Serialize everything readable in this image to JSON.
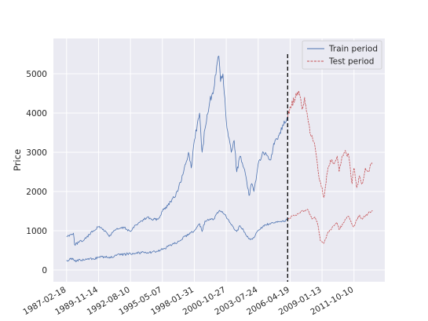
{
  "chart_data": {
    "type": "line",
    "title": "",
    "xlabel": "",
    "ylabel": "Price",
    "x_axis_type": "date",
    "xlim": [
      "1986-01-01",
      "2014-06-01"
    ],
    "ylim": [
      -300,
      5900
    ],
    "grid": true,
    "style": "seaborn-darkgrid",
    "legend_position": "top-right",
    "x_tick_labels": [
      "1987-02-18",
      "1989-11-14",
      "1992-08-10",
      "1995-05-07",
      "1998-01-31",
      "2000-10-27",
      "2003-07-24",
      "2006-04-19",
      "2009-01-13",
      "2011-10-10"
    ],
    "y_ticks": [
      0,
      1000,
      2000,
      3000,
      4000,
      5000
    ],
    "split_date": "2006-02-01",
    "split_line_top": 5500,
    "series": [
      {
        "name": "Train period",
        "color": "#4c72b0",
        "style": "solid",
        "points": [
          [
            "1987-02-18",
            850
          ],
          [
            "1987-06-01",
            900
          ],
          [
            "1987-09-20",
            940
          ],
          [
            "1987-10-25",
            650
          ],
          [
            "1988-03-01",
            700
          ],
          [
            "1988-09-01",
            780
          ],
          [
            "1989-02-01",
            900
          ],
          [
            "1989-06-01",
            1000
          ],
          [
            "1989-11-14",
            1100
          ],
          [
            "1990-03-01",
            1060
          ],
          [
            "1990-08-01",
            950
          ],
          [
            "1990-10-15",
            850
          ],
          [
            "1991-03-01",
            1000
          ],
          [
            "1991-08-01",
            1050
          ],
          [
            "1992-02-01",
            1080
          ],
          [
            "1992-08-10",
            980
          ],
          [
            "1993-02-01",
            1150
          ],
          [
            "1993-08-01",
            1250
          ],
          [
            "1994-02-01",
            1350
          ],
          [
            "1994-06-01",
            1280
          ],
          [
            "1995-01-01",
            1300
          ],
          [
            "1995-05-07",
            1500
          ],
          [
            "1995-10-01",
            1650
          ],
          [
            "1996-03-01",
            1800
          ],
          [
            "1996-09-01",
            2000
          ],
          [
            "1997-03-01",
            2500
          ],
          [
            "1997-08-01",
            3000
          ],
          [
            "1997-10-27",
            2600
          ],
          [
            "1998-01-31",
            3300
          ],
          [
            "1998-07-15",
            4000
          ],
          [
            "1998-10-01",
            3000
          ],
          [
            "1999-01-01",
            3600
          ],
          [
            "1999-06-01",
            4300
          ],
          [
            "1999-10-01",
            4600
          ],
          [
            "2000-01-01",
            5200
          ],
          [
            "2000-03-10",
            5450
          ],
          [
            "2000-05-01",
            4800
          ],
          [
            "2000-07-15",
            5000
          ],
          [
            "2000-10-27",
            3800
          ],
          [
            "2001-01-01",
            3400
          ],
          [
            "2001-04-01",
            3000
          ],
          [
            "2001-07-01",
            3300
          ],
          [
            "2001-09-21",
            2500
          ],
          [
            "2002-01-01",
            2900
          ],
          [
            "2002-05-01",
            2600
          ],
          [
            "2002-10-09",
            1900
          ],
          [
            "2003-01-01",
            2200
          ],
          [
            "2003-03-11",
            2000
          ],
          [
            "2003-07-24",
            2700
          ],
          [
            "2004-01-01",
            3000
          ],
          [
            "2004-08-01",
            2800
          ],
          [
            "2005-01-01",
            3300
          ],
          [
            "2005-06-01",
            3500
          ],
          [
            "2005-10-15",
            3800
          ],
          [
            "2006-02-01",
            3900
          ]
        ]
      },
      {
        "name": "Test period",
        "color": "#c44e52",
        "style": "dashed",
        "points": [
          [
            "2006-02-01",
            3900
          ],
          [
            "2006-06-01",
            4200
          ],
          [
            "2006-10-01",
            4400
          ],
          [
            "2007-02-01",
            4500
          ],
          [
            "2007-05-01",
            4100
          ],
          [
            "2007-07-15",
            4400
          ],
          [
            "2007-10-01",
            4000
          ],
          [
            "2008-01-01",
            3500
          ],
          [
            "2008-04-01",
            3300
          ],
          [
            "2008-07-01",
            3000
          ],
          [
            "2008-10-01",
            2400
          ],
          [
            "2009-01-13",
            2100
          ],
          [
            "2009-03-09",
            1850
          ],
          [
            "2009-07-01",
            2500
          ],
          [
            "2009-10-01",
            2800
          ],
          [
            "2010-01-01",
            2700
          ],
          [
            "2010-05-01",
            2900
          ],
          [
            "2010-07-01",
            2500
          ],
          [
            "2010-10-01",
            2900
          ],
          [
            "2011-02-01",
            3000
          ],
          [
            "2011-05-01",
            2900
          ],
          [
            "2011-08-10",
            2200
          ],
          [
            "2011-10-10",
            2600
          ],
          [
            "2012-01-01",
            2100
          ],
          [
            "2012-04-01",
            2400
          ],
          [
            "2012-07-01",
            2200
          ],
          [
            "2012-10-01",
            2600
          ],
          [
            "2013-01-01",
            2500
          ],
          [
            "2013-04-01",
            2700
          ],
          [
            "2013-05-15",
            2700
          ]
        ]
      },
      {
        "color": "#4c72b0",
        "style": "solid",
        "points": [
          [
            "1987-02-18",
            250
          ],
          [
            "1987-09-01",
            300
          ],
          [
            "1987-10-25",
            230
          ],
          [
            "1988-06-01",
            250
          ],
          [
            "1989-06-01",
            290
          ],
          [
            "1989-11-14",
            320
          ],
          [
            "1990-06-01",
            340
          ],
          [
            "1990-10-15",
            300
          ],
          [
            "1991-06-01",
            370
          ],
          [
            "1992-08-10",
            420
          ],
          [
            "1993-08-01",
            450
          ],
          [
            "1994-06-01",
            450
          ],
          [
            "1995-05-07",
            520
          ],
          [
            "1996-03-01",
            640
          ],
          [
            "1997-01-01",
            780
          ],
          [
            "1997-08-01",
            920
          ],
          [
            "1998-01-31",
            1000
          ],
          [
            "1998-07-15",
            1180
          ],
          [
            "1998-10-01",
            980
          ],
          [
            "1999-01-01",
            1250
          ],
          [
            "1999-10-01",
            1300
          ],
          [
            "2000-03-24",
            1520
          ],
          [
            "2000-09-01",
            1420
          ],
          [
            "2000-10-27",
            1350
          ],
          [
            "2001-04-01",
            1150
          ],
          [
            "2001-09-21",
            980
          ],
          [
            "2002-01-01",
            1130
          ],
          [
            "2002-10-09",
            790
          ],
          [
            "2003-03-11",
            820
          ],
          [
            "2003-07-24",
            1000
          ],
          [
            "2004-01-01",
            1130
          ],
          [
            "2005-01-01",
            1200
          ],
          [
            "2005-10-15",
            1250
          ],
          [
            "2006-02-01",
            1300
          ]
        ]
      },
      {
        "color": "#c44e52",
        "style": "dashed",
        "points": [
          [
            "2006-02-01",
            1300
          ],
          [
            "2006-10-01",
            1400
          ],
          [
            "2007-02-01",
            1450
          ],
          [
            "2007-10-09",
            1550
          ],
          [
            "2008-03-01",
            1300
          ],
          [
            "2008-06-01",
            1350
          ],
          [
            "2008-09-01",
            1150
          ],
          [
            "2008-11-20",
            750
          ],
          [
            "2009-03-09",
            680
          ],
          [
            "2009-07-01",
            930
          ],
          [
            "2010-01-01",
            1120
          ],
          [
            "2010-04-23",
            1210
          ],
          [
            "2010-07-01",
            1030
          ],
          [
            "2011-01-01",
            1280
          ],
          [
            "2011-04-29",
            1360
          ],
          [
            "2011-10-03",
            1100
          ],
          [
            "2012-01-01",
            1280
          ],
          [
            "2012-04-01",
            1400
          ],
          [
            "2012-06-01",
            1300
          ],
          [
            "2013-01-01",
            1450
          ],
          [
            "2013-05-15",
            1500
          ]
        ]
      }
    ]
  }
}
